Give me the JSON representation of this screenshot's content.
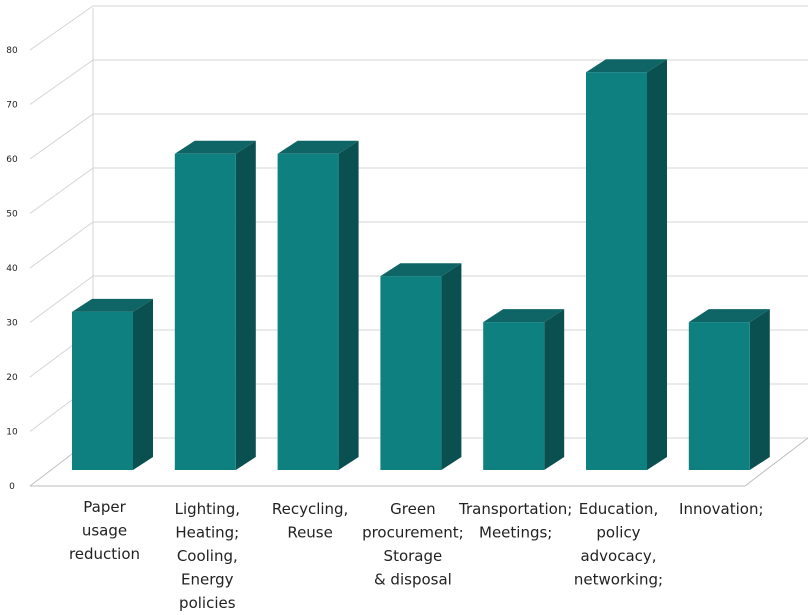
{
  "chart_data": {
    "type": "bar",
    "style": "3d-column",
    "categories": [
      [
        "Paper",
        "usage",
        "reduction"
      ],
      [
        "Lighting,",
        "Heating;",
        "Cooling,",
        "Energy",
        "policies"
      ],
      [
        "Recycling,",
        "Reuse"
      ],
      [
        "Green",
        "procurement;",
        "Storage",
        "& disposal"
      ],
      [
        "Transportation;",
        "Meetings;"
      ],
      [
        "Education,",
        "policy",
        "advocacy,",
        "networking;"
      ],
      [
        "Innovation;"
      ]
    ],
    "values": [
      31,
      62,
      62,
      38,
      29,
      78,
      29
    ],
    "ylim": [
      0,
      80
    ],
    "yticks": [
      0,
      10,
      20,
      30,
      40,
      50,
      60,
      70,
      80
    ],
    "grid": true,
    "legend": "none",
    "colors": {
      "front": "#0e8080",
      "side": "#0b5050",
      "top": "#0f6565"
    }
  }
}
